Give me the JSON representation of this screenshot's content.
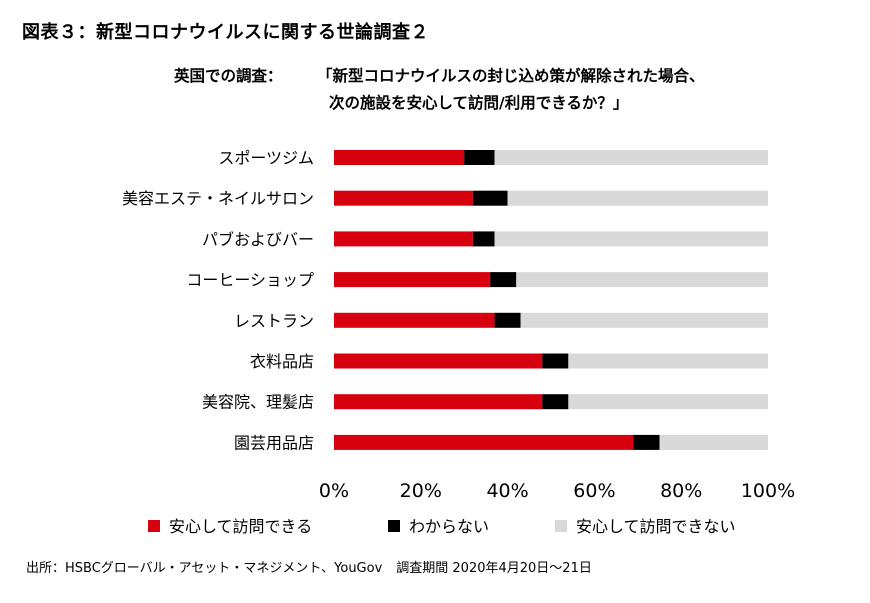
{
  "title": "図表３：新型コロナウイルスに関する世論調査２",
  "subtitle": {
    "label": "英国での調査：",
    "line1": "「新型コロナウイルスの封じ込め策が解除された場合、",
    "line2": "次の施設を安心して訪問/利用できるか？」"
  },
  "footer": {
    "source": "出所：HSBCグローバル・アセット・マネジメント、YouGov",
    "period": "調査期間 2020年4月20日～21日"
  },
  "colors": {
    "safe": "#d7000f",
    "unknown": "#000000",
    "unsafe": "#d9d9d9"
  },
  "chart_data": {
    "type": "bar",
    "orientation": "horizontal",
    "stacked": true,
    "percent": true,
    "categories": [
      "スポーツジム",
      "美容エステ・ネイルサロン",
      "パブおよびバー",
      "コーヒーショップ",
      "レストラン",
      "衣料品店",
      "美容院、理髪店",
      "園芸用品店"
    ],
    "series": [
      {
        "name": "安心して訪問できる",
        "key": "safe",
        "values": [
          30,
          32,
          32,
          36,
          37,
          48,
          48,
          69
        ]
      },
      {
        "name": "わからない",
        "key": "unknown",
        "values": [
          7,
          8,
          5,
          6,
          6,
          6,
          6,
          6
        ]
      },
      {
        "name": "安心して訪問できない",
        "key": "unsafe",
        "values": [
          63,
          60,
          63,
          58,
          57,
          46,
          46,
          25
        ]
      }
    ],
    "xlim": [
      0,
      100
    ],
    "xticks": [
      "0%",
      "20%",
      "40%",
      "60%",
      "80%",
      "100%"
    ],
    "legend_position": "bottom"
  }
}
